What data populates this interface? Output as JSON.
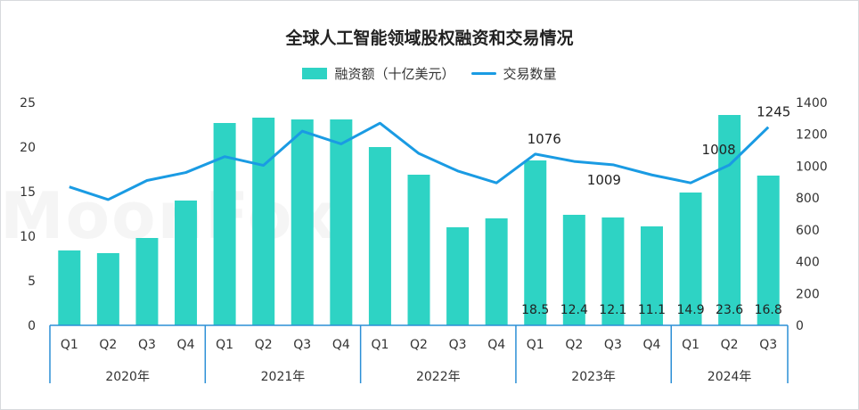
{
  "chart_data": {
    "type": "bar",
    "title": "全球人工智能领域股权融资和交易情况",
    "categories": [
      "Q1",
      "Q2",
      "Q3",
      "Q4",
      "Q1",
      "Q2",
      "Q3",
      "Q4",
      "Q1",
      "Q2",
      "Q3",
      "Q4",
      "Q1",
      "Q2",
      "Q3",
      "Q4",
      "Q1",
      "Q2",
      "Q3"
    ],
    "groups": [
      {
        "label": "2020年",
        "count": 4
      },
      {
        "label": "2021年",
        "count": 4
      },
      {
        "label": "2022年",
        "count": 4
      },
      {
        "label": "2023年",
        "count": 4
      },
      {
        "label": "2024年",
        "count": 3
      }
    ],
    "series": [
      {
        "name": "融资额（十亿美元）",
        "type": "bar",
        "axis": "left",
        "values": [
          8.4,
          8.1,
          9.8,
          14.0,
          22.7,
          23.3,
          23.1,
          23.1,
          20.0,
          16.9,
          11.0,
          12.0,
          18.5,
          12.4,
          12.1,
          11.1,
          14.9,
          23.6,
          16.8
        ],
        "labeled_indices": [
          12,
          13,
          14,
          15,
          16,
          17,
          18
        ]
      },
      {
        "name": "交易数量",
        "type": "line",
        "axis": "right",
        "values": [
          870,
          790,
          910,
          960,
          1060,
          1005,
          1220,
          1140,
          1270,
          1080,
          970,
          895,
          1076,
          1030,
          1009,
          945,
          895,
          1008,
          1245
        ],
        "labeled_indices": [
          12,
          14,
          17,
          18
        ]
      }
    ],
    "ylim_left": [
      0,
      25
    ],
    "yticks_left": [
      "0",
      "5",
      "10",
      "15",
      "20",
      "25"
    ],
    "ylim_right": [
      0,
      1400
    ],
    "yticks_right": [
      "0",
      "200",
      "400",
      "600",
      "800",
      "1000",
      "1200",
      "1400"
    ],
    "grid": false,
    "legend_position": "top-center",
    "colors": {
      "bar": "#2ed3c4",
      "line": "#1a9be3",
      "axis": "#2b8fd6"
    }
  },
  "legend": {
    "bar_label": "融资额（十亿美元）",
    "line_label": "交易数量"
  },
  "watermark": "MoonFox"
}
